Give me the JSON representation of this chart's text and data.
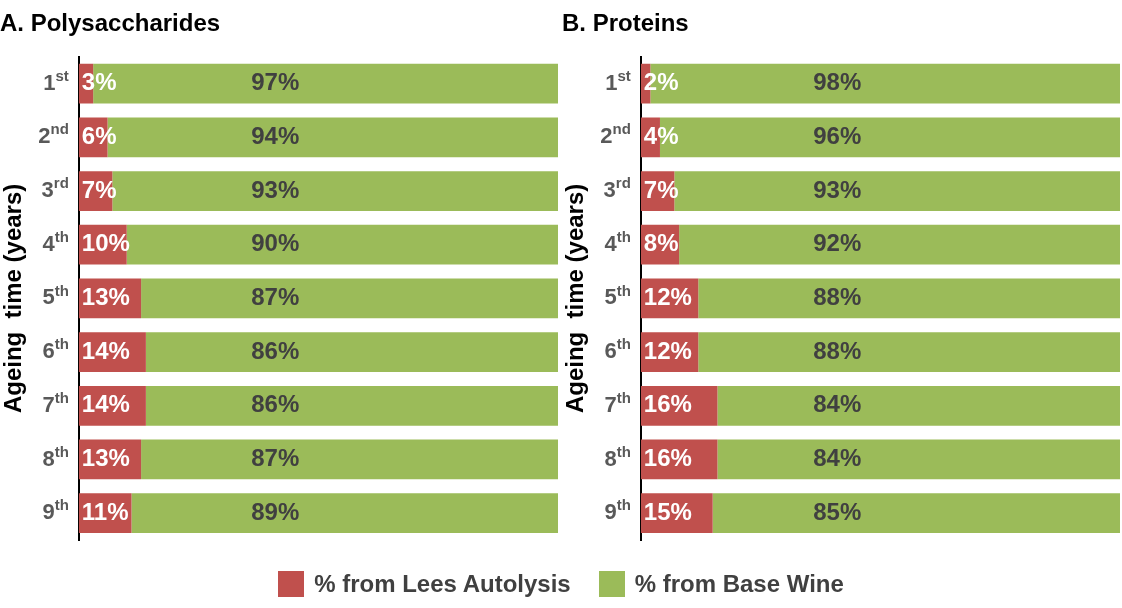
{
  "chart_data": [
    {
      "type": "bar",
      "orientation": "horizontal",
      "stacked": true,
      "title": "A. Polysaccharides",
      "ylabel": "Ageing  time (years)",
      "categories": [
        "1$^{st}$",
        "2$^{nd}$",
        "3$^{rd}$",
        "4$^{th}$",
        "5$^{th}$",
        "6$^{th}$",
        "7$^{th}$",
        "8$^{th}$",
        "9$^{th}$"
      ],
      "series": [
        {
          "name": "% from Lees Autolysis",
          "color": "#c0504d",
          "values": [
            3,
            6,
            7,
            10,
            13,
            14,
            14,
            13,
            11
          ],
          "value_labels": [
            "3%",
            "6%",
            "7%",
            "10%",
            "13%",
            "14%",
            "14%",
            "13%",
            "11%"
          ]
        },
        {
          "name": "% from Base Wine",
          "color": "#9bbb59",
          "values": [
            97,
            94,
            93,
            90,
            87,
            86,
            86,
            87,
            89
          ],
          "value_labels": [
            "97%",
            "94%",
            "93%",
            "90%",
            "87%",
            "86%",
            "86%",
            "87%",
            "89%"
          ]
        }
      ],
      "tick_labels": "y",
      "legend": "bottom"
    },
    {
      "type": "bar",
      "orientation": "horizontal",
      "stacked": true,
      "title": "B. Proteins",
      "ylabel": "Ageing  time (years)",
      "categories": [
        "1$^{st}$",
        "2$^{nd}$",
        "3$^{rd}$",
        "4$^{th}$",
        "5$^{th}$",
        "6$^{th}$",
        "7$^{th}$",
        "8$^{th}$",
        "9$^{th}$"
      ],
      "series": [
        {
          "color": "#c0504d",
          "values": [
            2,
            4,
            7,
            8,
            12,
            12,
            16,
            16,
            15
          ],
          "value_labels": [
            "2%",
            "4%",
            "7%",
            "8%",
            "12%",
            "12%",
            "16%",
            "16%",
            "15%"
          ]
        },
        {
          "color": "#9bbb59",
          "values": [
            98,
            96,
            93,
            92,
            88,
            88,
            84,
            84,
            85
          ],
          "value_labels": [
            "98%",
            "96%",
            "93%",
            "92%",
            "88%",
            "88%",
            "84%",
            "84%",
            "85%"
          ]
        }
      ],
      "tick_labels": "y"
    }
  ]
}
